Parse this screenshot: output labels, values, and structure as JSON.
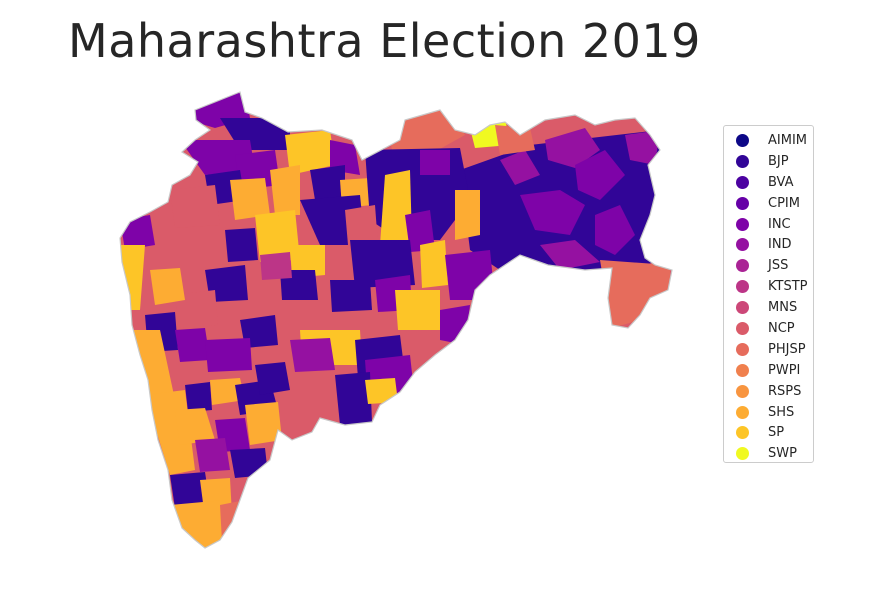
{
  "title": "Maharashtra Election 2019",
  "legend": [
    {
      "label": "AIMIM",
      "color": "#0d0887"
    },
    {
      "label": "BJP",
      "color": "#310597"
    },
    {
      "label": "BVA",
      "color": "#4c02a1"
    },
    {
      "label": "CPIM",
      "color": "#6600a7"
    },
    {
      "label": "INC",
      "color": "#7e03a8"
    },
    {
      "label": "IND",
      "color": "#9511a1"
    },
    {
      "label": "JSS",
      "color": "#aa2395"
    },
    {
      "label": "KTSTP",
      "color": "#bc3587"
    },
    {
      "label": "MNS",
      "color": "#cc4778"
    },
    {
      "label": "NCP",
      "color": "#da5b69"
    },
    {
      "label": "PHJSP",
      "color": "#e66c5c"
    },
    {
      "label": "PWPI",
      "color": "#f0804e"
    },
    {
      "label": "RSPS",
      "color": "#f89540"
    },
    {
      "label": "SHS",
      "color": "#fdac33"
    },
    {
      "label": "SP",
      "color": "#fdc527"
    },
    {
      "label": "SWP",
      "color": "#f0f921"
    }
  ]
}
